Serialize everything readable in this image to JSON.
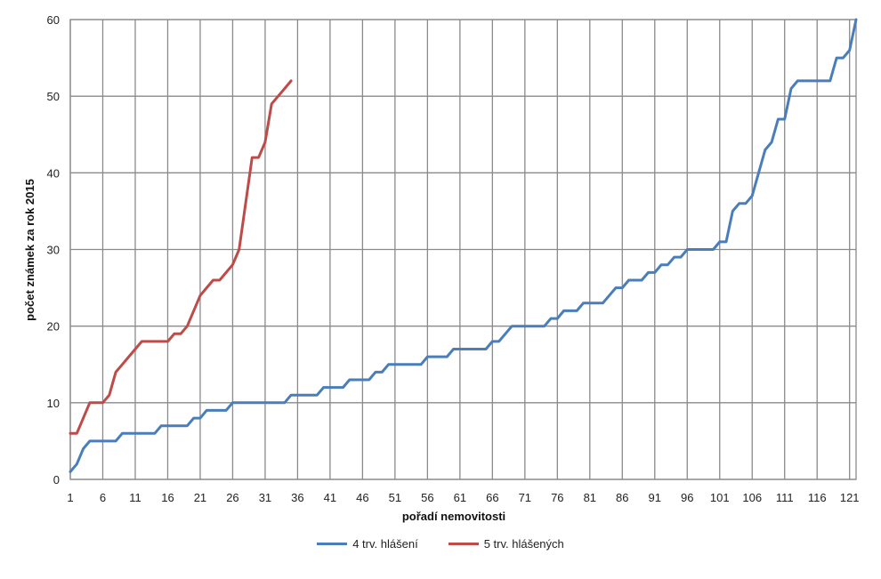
{
  "chart_data": {
    "type": "line",
    "title": "",
    "xlabel": "pořadí nemovitosti",
    "ylabel": "počet známek za rok 2015",
    "xlim": [
      1,
      122
    ],
    "ylim": [
      0,
      60
    ],
    "x_ticks": [
      1,
      6,
      11,
      16,
      21,
      26,
      31,
      36,
      41,
      46,
      51,
      56,
      61,
      66,
      71,
      76,
      81,
      86,
      91,
      96,
      101,
      106,
      111,
      116,
      121
    ],
    "y_ticks": [
      0,
      10,
      20,
      30,
      40,
      50,
      60
    ],
    "grid": true,
    "legend_position": "bottom",
    "series": [
      {
        "name": "4 trv. hlášení",
        "color": "#4a7ebb",
        "points": [
          [
            1,
            1
          ],
          [
            2,
            2
          ],
          [
            3,
            4
          ],
          [
            4,
            5
          ],
          [
            5,
            5
          ],
          [
            6,
            5
          ],
          [
            7,
            5
          ],
          [
            8,
            5
          ],
          [
            9,
            6
          ],
          [
            10,
            6
          ],
          [
            11,
            6
          ],
          [
            12,
            6
          ],
          [
            13,
            6
          ],
          [
            14,
            6
          ],
          [
            15,
            7
          ],
          [
            16,
            7
          ],
          [
            17,
            7
          ],
          [
            18,
            7
          ],
          [
            19,
            7
          ],
          [
            20,
            8
          ],
          [
            21,
            8
          ],
          [
            22,
            9
          ],
          [
            23,
            9
          ],
          [
            24,
            9
          ],
          [
            25,
            9
          ],
          [
            26,
            10
          ],
          [
            27,
            10
          ],
          [
            28,
            10
          ],
          [
            29,
            10
          ],
          [
            30,
            10
          ],
          [
            31,
            10
          ],
          [
            32,
            10
          ],
          [
            33,
            10
          ],
          [
            34,
            10
          ],
          [
            35,
            11
          ],
          [
            36,
            11
          ],
          [
            37,
            11
          ],
          [
            38,
            11
          ],
          [
            39,
            11
          ],
          [
            40,
            12
          ],
          [
            41,
            12
          ],
          [
            42,
            12
          ],
          [
            43,
            12
          ],
          [
            44,
            13
          ],
          [
            45,
            13
          ],
          [
            46,
            13
          ],
          [
            47,
            13
          ],
          [
            48,
            14
          ],
          [
            49,
            14
          ],
          [
            50,
            15
          ],
          [
            51,
            15
          ],
          [
            52,
            15
          ],
          [
            53,
            15
          ],
          [
            54,
            15
          ],
          [
            55,
            15
          ],
          [
            56,
            16
          ],
          [
            57,
            16
          ],
          [
            58,
            16
          ],
          [
            59,
            16
          ],
          [
            60,
            17
          ],
          [
            61,
            17
          ],
          [
            62,
            17
          ],
          [
            63,
            17
          ],
          [
            64,
            17
          ],
          [
            65,
            17
          ],
          [
            66,
            18
          ],
          [
            67,
            18
          ],
          [
            68,
            19
          ],
          [
            69,
            20
          ],
          [
            70,
            20
          ],
          [
            71,
            20
          ],
          [
            72,
            20
          ],
          [
            73,
            20
          ],
          [
            74,
            20
          ],
          [
            75,
            21
          ],
          [
            76,
            21
          ],
          [
            77,
            22
          ],
          [
            78,
            22
          ],
          [
            79,
            22
          ],
          [
            80,
            23
          ],
          [
            81,
            23
          ],
          [
            82,
            23
          ],
          [
            83,
            23
          ],
          [
            84,
            24
          ],
          [
            85,
            25
          ],
          [
            86,
            25
          ],
          [
            87,
            26
          ],
          [
            88,
            26
          ],
          [
            89,
            26
          ],
          [
            90,
            27
          ],
          [
            91,
            27
          ],
          [
            92,
            28
          ],
          [
            93,
            28
          ],
          [
            94,
            29
          ],
          [
            95,
            29
          ],
          [
            96,
            30
          ],
          [
            97,
            30
          ],
          [
            98,
            30
          ],
          [
            99,
            30
          ],
          [
            100,
            30
          ],
          [
            101,
            31
          ],
          [
            102,
            31
          ],
          [
            103,
            35
          ],
          [
            104,
            36
          ],
          [
            105,
            36
          ],
          [
            106,
            37
          ],
          [
            107,
            40
          ],
          [
            108,
            43
          ],
          [
            109,
            44
          ],
          [
            110,
            47
          ],
          [
            111,
            47
          ],
          [
            112,
            51
          ],
          [
            113,
            52
          ],
          [
            114,
            52
          ],
          [
            115,
            52
          ],
          [
            116,
            52
          ],
          [
            117,
            52
          ],
          [
            118,
            52
          ],
          [
            119,
            55
          ],
          [
            120,
            55
          ],
          [
            121,
            56
          ],
          [
            122,
            60
          ]
        ]
      },
      {
        "name": "5 trv. hlášených",
        "color": "#be4b48",
        "points": [
          [
            1,
            6
          ],
          [
            2,
            6
          ],
          [
            3,
            8
          ],
          [
            4,
            10
          ],
          [
            5,
            10
          ],
          [
            6,
            10
          ],
          [
            7,
            11
          ],
          [
            8,
            14
          ],
          [
            9,
            15
          ],
          [
            10,
            16
          ],
          [
            11,
            17
          ],
          [
            12,
            18
          ],
          [
            13,
            18
          ],
          [
            14,
            18
          ],
          [
            15,
            18
          ],
          [
            16,
            18
          ],
          [
            17,
            19
          ],
          [
            18,
            19
          ],
          [
            19,
            20
          ],
          [
            20,
            22
          ],
          [
            21,
            24
          ],
          [
            22,
            25
          ],
          [
            23,
            26
          ],
          [
            24,
            26
          ],
          [
            25,
            27
          ],
          [
            26,
            28
          ],
          [
            27,
            30
          ],
          [
            28,
            36
          ],
          [
            29,
            42
          ],
          [
            30,
            42
          ],
          [
            31,
            44
          ],
          [
            32,
            49
          ],
          [
            33,
            50
          ],
          [
            34,
            51
          ],
          [
            35,
            52
          ]
        ]
      }
    ]
  }
}
